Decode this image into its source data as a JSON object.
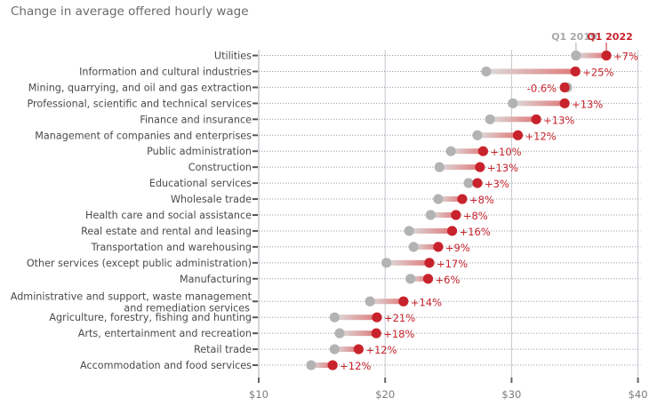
{
  "chart_data": {
    "type": "dumbbell",
    "title": "Change in average offered hourly wage",
    "xlabel": "",
    "ylabel": "",
    "xlim": [
      10,
      40.2
    ],
    "x_ticks": [
      10,
      20,
      30,
      40
    ],
    "x_tick_labels": [
      "$10",
      "$20",
      "$30",
      "$40"
    ],
    "grid": "vertical major lines + dotted row guides",
    "legend": {
      "placement": "top-right",
      "entries": [
        {
          "name": "Q1 2019",
          "color": "#b3b3b3"
        },
        {
          "name": "Q1 2022",
          "color": "#c8232c"
        }
      ]
    },
    "series": [
      {
        "name": "Q1 2019",
        "color": "#b3b3b3"
      },
      {
        "name": "Q1 2022",
        "color": "#c8232c"
      }
    ],
    "rows": [
      {
        "label": [
          "Utilities"
        ],
        "q1_2019": 35.1,
        "q1_2022": 37.5,
        "change": "+7%"
      },
      {
        "label": [
          "Information and cultural industries"
        ],
        "q1_2019": 28.0,
        "q1_2022": 35.05,
        "change": "+25%"
      },
      {
        "label": [
          "Mining, quarrying, and oil and gas extraction"
        ],
        "q1_2019": 34.4,
        "q1_2022": 34.2,
        "change": "-0.6%"
      },
      {
        "label": [
          "Professional, scientific and technical services"
        ],
        "q1_2019": 30.1,
        "q1_2022": 34.2,
        "change": "+13%"
      },
      {
        "label": [
          "Finance and insurance"
        ],
        "q1_2019": 28.3,
        "q1_2022": 31.95,
        "change": "+13%"
      },
      {
        "label": [
          "Management of companies and enterprises"
        ],
        "q1_2019": 27.3,
        "q1_2022": 30.5,
        "change": "+12%"
      },
      {
        "label": [
          "Public administration"
        ],
        "q1_2019": 25.2,
        "q1_2022": 27.75,
        "change": "+10%"
      },
      {
        "label": [
          "Construction"
        ],
        "q1_2019": 24.3,
        "q1_2022": 27.5,
        "change": "+13%"
      },
      {
        "label": [
          "Educational services"
        ],
        "q1_2019": 26.6,
        "q1_2022": 27.3,
        "change": "+3%"
      },
      {
        "label": [
          "Wholesale trade"
        ],
        "q1_2019": 24.2,
        "q1_2022": 26.1,
        "change": "+8%"
      },
      {
        "label": [
          "Health care and social assistance"
        ],
        "q1_2019": 23.6,
        "q1_2022": 25.6,
        "change": "+8%"
      },
      {
        "label": [
          "Real estate and rental and leasing"
        ],
        "q1_2019": 21.9,
        "q1_2022": 25.3,
        "change": "+16%"
      },
      {
        "label": [
          "Transportation and warehousing"
        ],
        "q1_2019": 22.25,
        "q1_2022": 24.2,
        "change": "+9%"
      },
      {
        "label": [
          "Other services (except public administration)"
        ],
        "q1_2019": 20.1,
        "q1_2022": 23.5,
        "change": "+17%"
      },
      {
        "label": [
          "Manufacturing"
        ],
        "q1_2019": 22.0,
        "q1_2022": 23.4,
        "change": "+6%"
      },
      {
        "label": [
          "Administrative and support, waste management",
          "and remediation services"
        ],
        "q1_2019": 18.8,
        "q1_2022": 21.45,
        "change": "+14%"
      },
      {
        "label": [
          "Agriculture, forestry, fishing and hunting"
        ],
        "q1_2019": 16.0,
        "q1_2022": 19.35,
        "change": "+21%"
      },
      {
        "label": [
          "Arts, entertainment and recreation"
        ],
        "q1_2019": 16.4,
        "q1_2022": 19.3,
        "change": "+18%"
      },
      {
        "label": [
          "Retail trade"
        ],
        "q1_2019": 16.0,
        "q1_2022": 17.9,
        "change": "+12%"
      },
      {
        "label": [
          "Accommodation and food services"
        ],
        "q1_2019": 14.15,
        "q1_2022": 15.85,
        "change": "+12%"
      }
    ]
  }
}
